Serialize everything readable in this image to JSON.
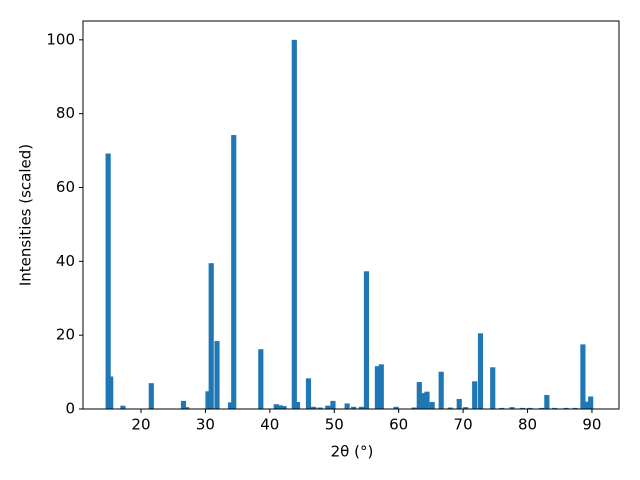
{
  "chart_data": {
    "type": "bar",
    "xlabel": "2θ (°)",
    "ylabel": "Intensities (scaled)",
    "x": [
      14.9,
      15.3,
      17.2,
      21.6,
      26.6,
      27.1,
      30.4,
      30.9,
      31.8,
      33.9,
      34.4,
      38.6,
      41.0,
      41.6,
      42.2,
      43.8,
      44.3,
      46.0,
      46.8,
      47.8,
      49.0,
      49.8,
      52.0,
      53.0,
      54.2,
      55.0,
      56.7,
      57.3,
      59.6,
      62.4,
      63.2,
      63.8,
      64.4,
      65.2,
      66.6,
      68.0,
      69.4,
      70.4,
      71.8,
      72.7,
      74.6,
      76.0,
      77.6,
      79.2,
      80.4,
      82.2,
      83.0,
      84.2,
      86.0,
      87.4,
      88.6,
      89.2,
      89.8
    ],
    "values": [
      69.2,
      8.8,
      0.9,
      7.0,
      2.2,
      0.5,
      4.8,
      39.5,
      18.4,
      1.8,
      74.2,
      16.2,
      1.3,
      1.0,
      0.8,
      100,
      1.9,
      8.3,
      0.6,
      0.4,
      0.9,
      2.2,
      1.5,
      0.6,
      0.6,
      37.3,
      11.6,
      12.1,
      0.6,
      0.4,
      7.3,
      4.3,
      4.7,
      1.9,
      10.1,
      0.4,
      2.7,
      0.5,
      7.5,
      20.5,
      11.3,
      0.3,
      0.5,
      0.3,
      0.3,
      0.3,
      3.8,
      0.3,
      0.3,
      0.3,
      17.5,
      2.0,
      3.4
    ],
    "color": "#1f77b4",
    "xlim": [
      11,
      94.2
    ],
    "xticks": [
      20,
      30,
      40,
      50,
      60,
      70,
      80,
      90
    ],
    "ylim": [
      0,
      105.1
    ],
    "yticks": [
      0,
      20,
      40,
      60,
      80,
      100
    ]
  }
}
